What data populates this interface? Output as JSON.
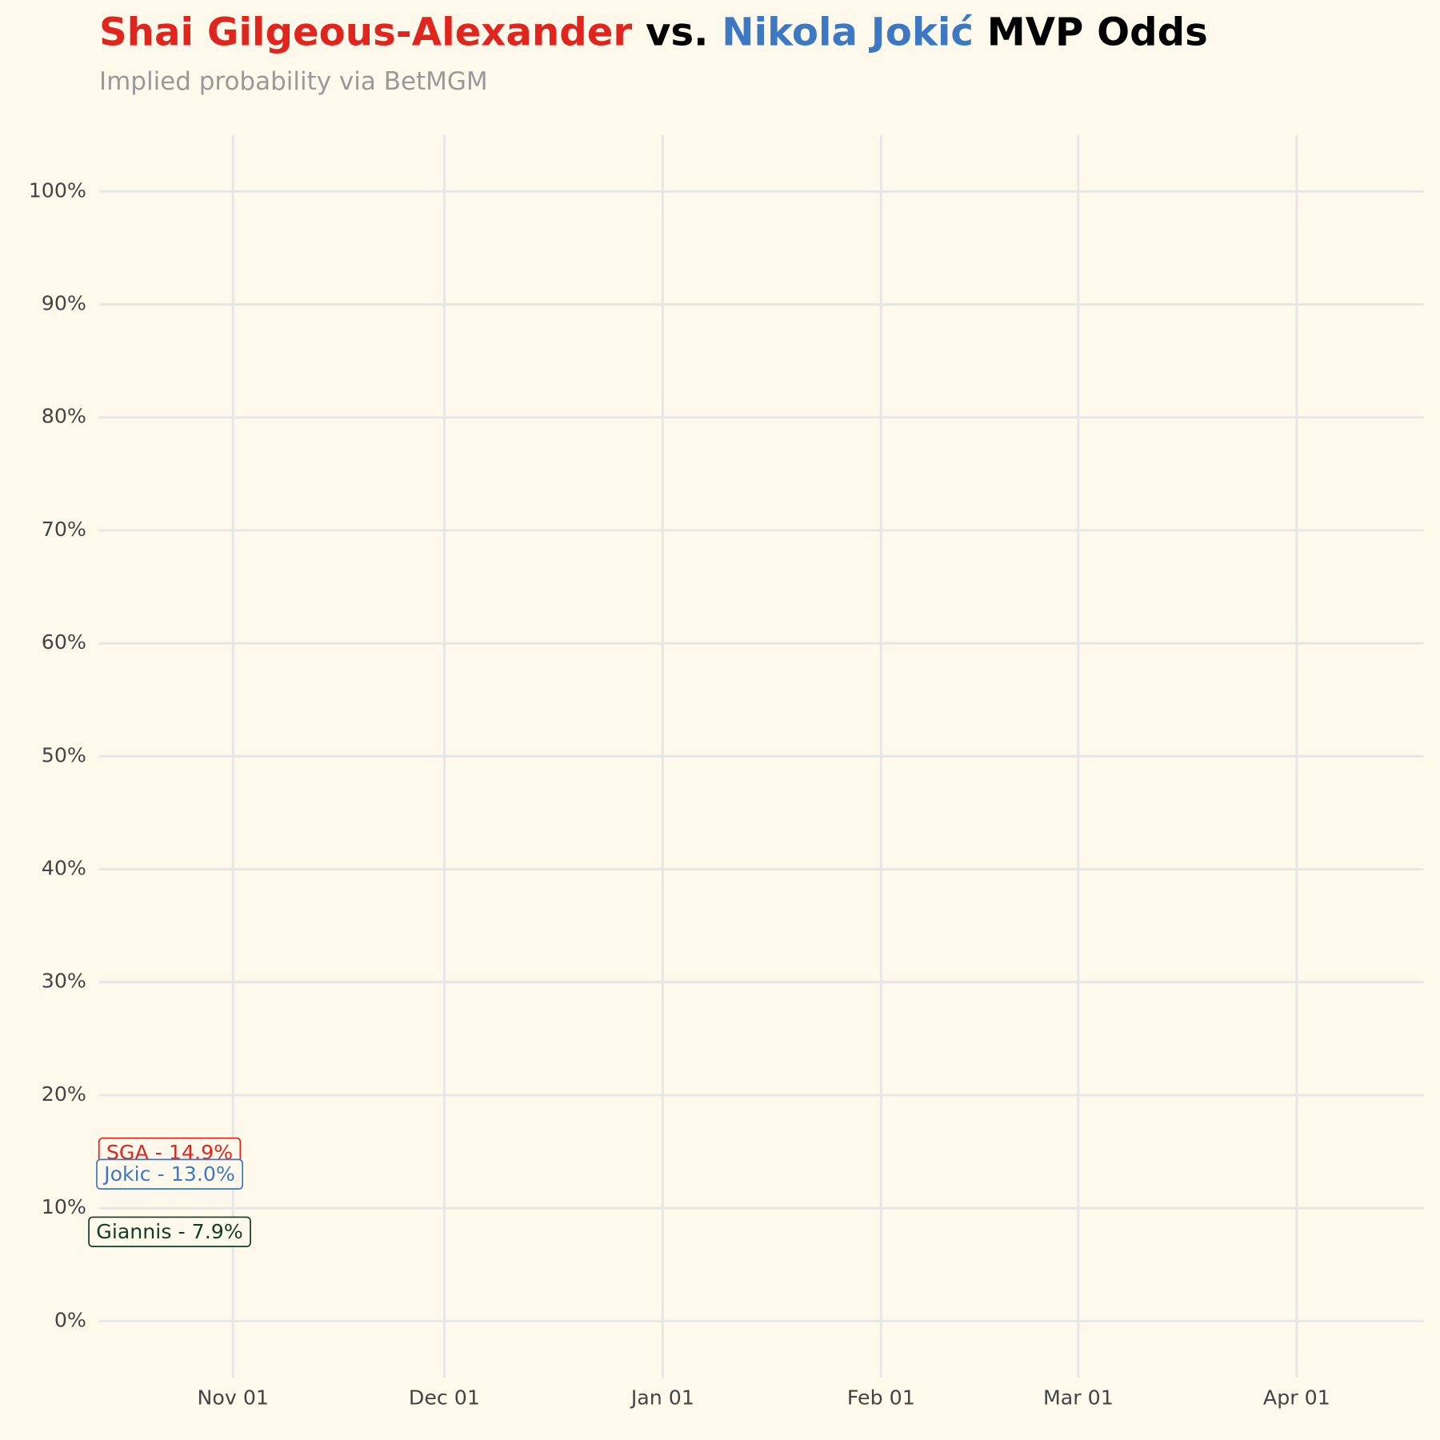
{
  "chart_data": {
    "type": "line",
    "title": [
      {
        "text": "Shai Gilgeous-Alexander",
        "color": "#e0251f"
      },
      {
        "text": " vs. ",
        "color": "#000000"
      },
      {
        "text": "Nikola Jokić",
        "color": "#3d79c2"
      },
      {
        "text": " MVP Odds",
        "color": "#000000"
      }
    ],
    "subtitle": "Implied probability via BetMGM",
    "x": [
      "Oct 23"
    ],
    "series": [
      {
        "name": "SGA",
        "color": "#e0251f",
        "values": [
          14.9
        ],
        "value_labels": [
          "SGA - 14.9%"
        ]
      },
      {
        "name": "Jokic",
        "color": "#3d79c2",
        "values": [
          13.0
        ],
        "value_labels": [
          "Jokic - 13.0%"
        ]
      },
      {
        "name": "Giannis",
        "color": "#0f3d26",
        "values": [
          7.9
        ],
        "value_labels": [
          "Giannis - 7.9%"
        ]
      }
    ],
    "xlim": [
      "Oct 13",
      "Apr 19"
    ],
    "xticks": [
      "Nov 01",
      "Dec 01",
      "Jan 01",
      "Feb 01",
      "Mar 01",
      "Apr 01"
    ],
    "ylim": [
      -5,
      105
    ],
    "yticks": [
      {
        "value": 0,
        "label": "0%"
      },
      {
        "value": 10,
        "label": "10%"
      },
      {
        "value": 20,
        "label": "20%"
      },
      {
        "value": 30,
        "label": "30%"
      },
      {
        "value": 40,
        "label": "40%"
      },
      {
        "value": 50,
        "label": "50%"
      },
      {
        "value": 60,
        "label": "60%"
      },
      {
        "value": 70,
        "label": "70%"
      },
      {
        "value": 80,
        "label": "80%"
      },
      {
        "value": 90,
        "label": "90%"
      },
      {
        "value": 100,
        "label": "100%"
      }
    ],
    "grid": true
  }
}
